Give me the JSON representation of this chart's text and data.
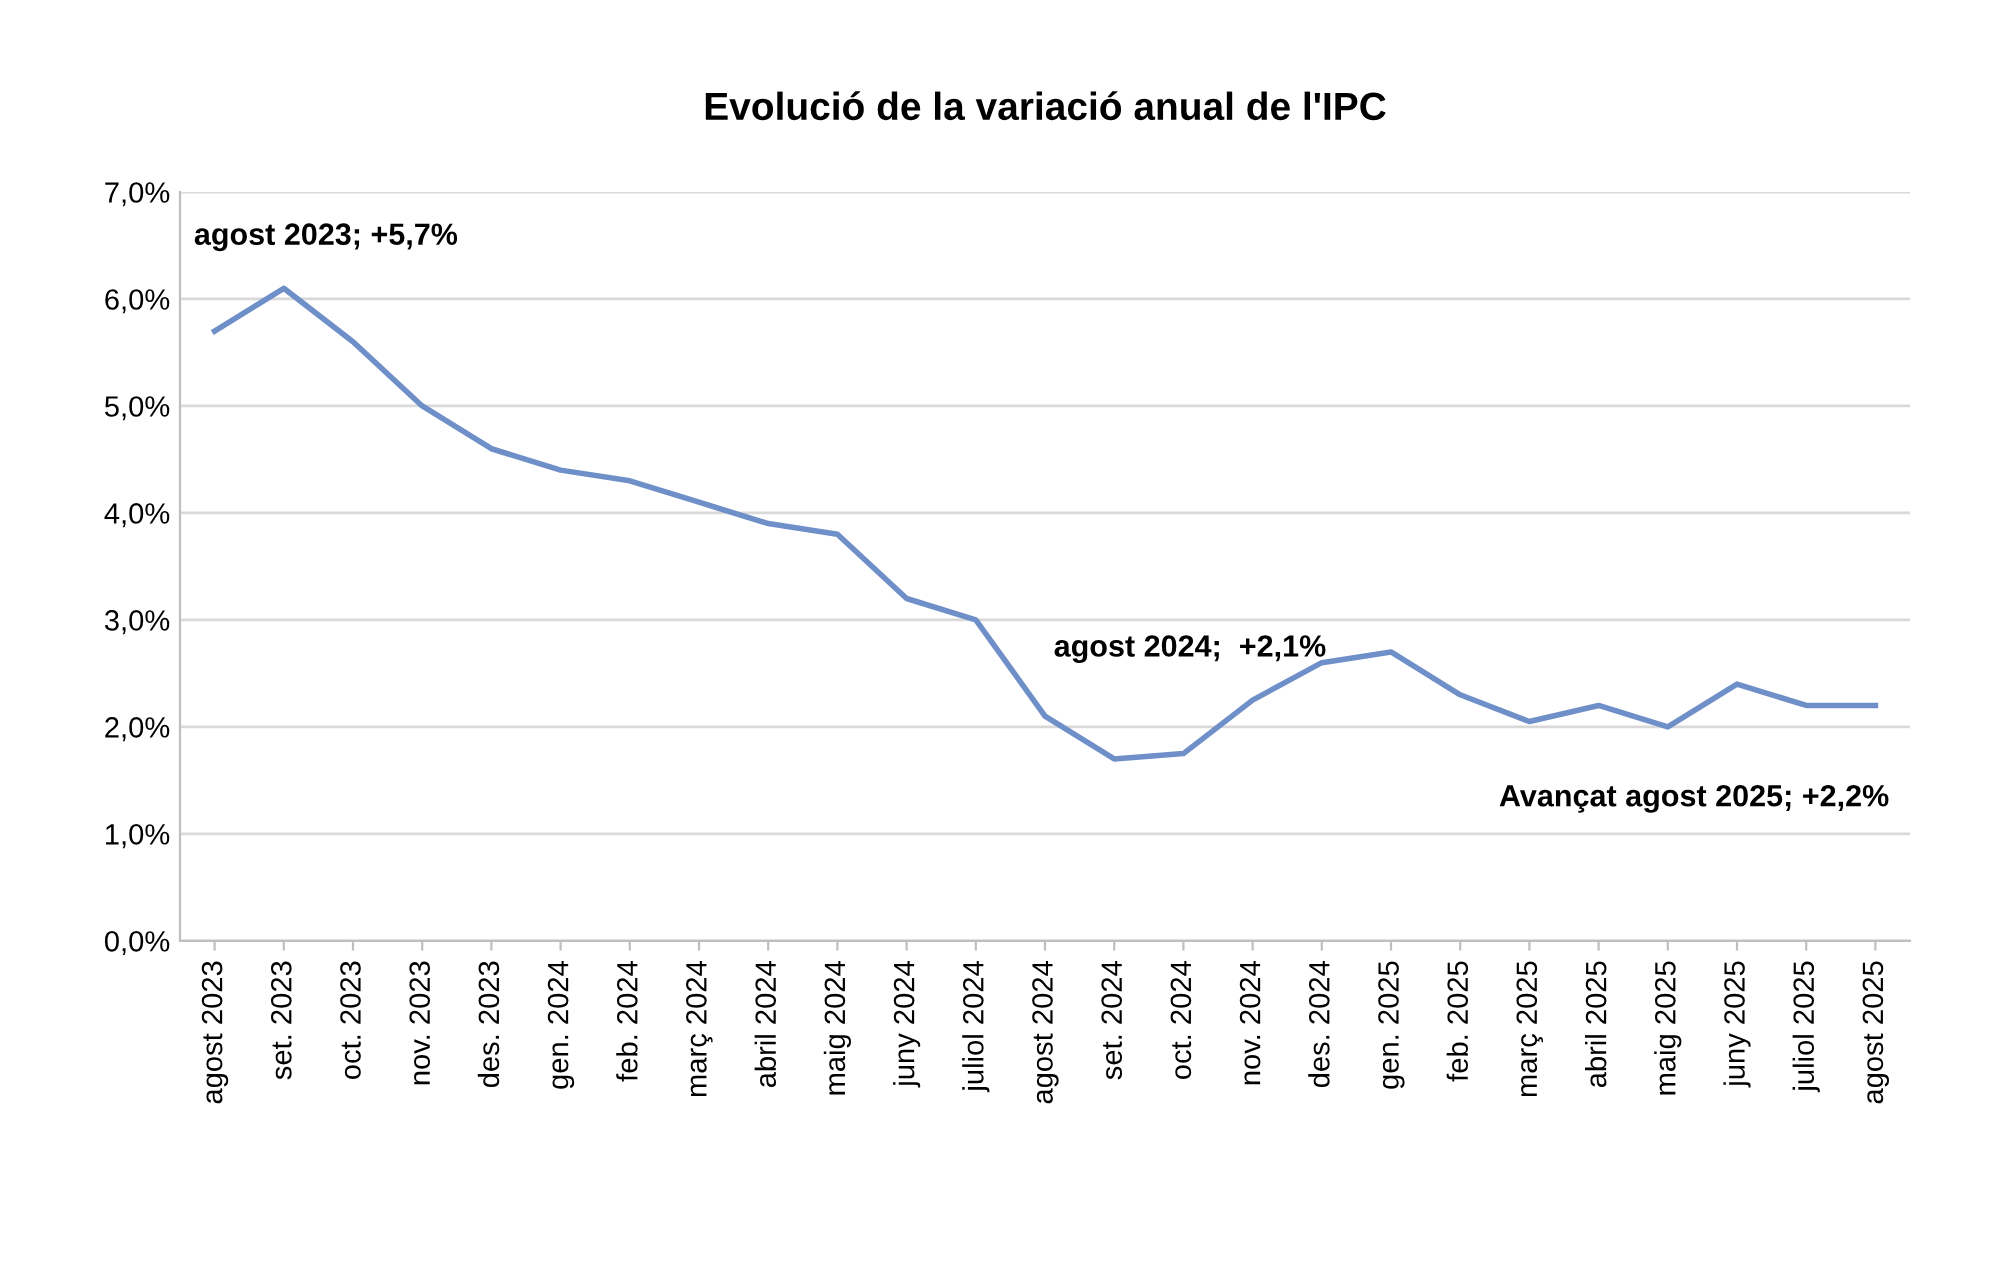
{
  "chart_data": {
    "type": "line",
    "title": "Evolució de la variació anual de l'IPC",
    "categories": [
      "agost 2023",
      "set. 2023",
      "oct. 2023",
      "nov. 2023",
      "des. 2023",
      "gen. 2024",
      "feb. 2024",
      "març 2024",
      "abril 2024",
      "maig 2024",
      "juny 2024",
      "juliol 2024",
      "agost 2024",
      "set. 2024",
      "oct. 2024",
      "nov. 2024",
      "des. 2024",
      "gen. 2025",
      "feb. 2025",
      "març 2025",
      "abril 2025",
      "maig 2025",
      "juny 2025",
      "juliol 2025",
      "agost 2025"
    ],
    "series": [
      {
        "color": "#6f8fc9",
        "values": [
          5.7,
          6.1,
          5.6,
          5.0,
          4.6,
          4.4,
          4.3,
          4.1,
          3.9,
          3.8,
          3.2,
          3.0,
          2.1,
          1.7,
          1.75,
          2.25,
          2.6,
          2.7,
          2.3,
          2.05,
          2.2,
          2.0,
          2.4,
          2.2,
          2.2
        ]
      }
    ],
    "ylim": [
      0,
      7
    ],
    "yticks": [
      {
        "value": 0,
        "label": "0,0%"
      },
      {
        "value": 1,
        "label": "1,0%"
      },
      {
        "value": 2,
        "label": "2,0%"
      },
      {
        "value": 3,
        "label": "3,0%"
      },
      {
        "value": 4,
        "label": "4,0%"
      },
      {
        "value": 5,
        "label": "5,0%"
      },
      {
        "value": 6,
        "label": "6,0%"
      },
      {
        "value": 7,
        "label": "7,0%"
      }
    ],
    "grid": "y",
    "marker": "none",
    "line_style": "solid",
    "annotations": [
      "agost 2023; +5,7%",
      "agost 2024;  +2,1%",
      "Avançat agost 2025; +2,2%"
    ]
  }
}
